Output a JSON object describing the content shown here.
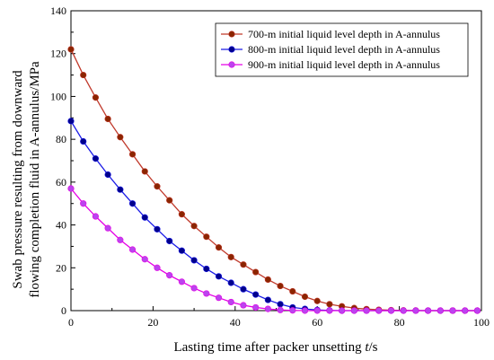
{
  "chart_data": {
    "type": "line",
    "title": "",
    "xlabel": "Lasting time after packer unsetting t/s",
    "xlabel_parts": [
      "Lasting time after packer unsetting ",
      "t",
      "/s"
    ],
    "ylabel_lines": [
      "Swab pressure resulting from downward",
      "flowing completion fluid in A-annulus/MPa"
    ],
    "xlim": [
      0,
      100
    ],
    "ylim": [
      0,
      140
    ],
    "x_ticks": [
      0,
      20,
      40,
      60,
      80,
      100
    ],
    "y_ticks": [
      0,
      20,
      40,
      60,
      80,
      100,
      120,
      140
    ],
    "grid": false,
    "legend_position": "top-right",
    "x": [
      0,
      3,
      6,
      9,
      12,
      15,
      18,
      21,
      24,
      27,
      30,
      33,
      36,
      39,
      42,
      45,
      48,
      51,
      54,
      57,
      60,
      63,
      66,
      69,
      72,
      75,
      78,
      81,
      84,
      87,
      90,
      93,
      96,
      99
    ],
    "series": [
      {
        "name": "700-m initial liquid level depth in A-annulus",
        "color": "#c0392b",
        "marker_color": "#8b2500",
        "values": [
          122,
          110,
          99.5,
          89.5,
          81,
          73,
          65,
          58,
          51.5,
          45,
          39.5,
          34.5,
          29.5,
          25,
          21.5,
          18,
          14.5,
          11.5,
          9,
          6.5,
          4.5,
          3,
          2,
          1.2,
          0.7,
          0.4,
          0.2,
          0.1,
          0.05,
          0,
          0,
          0,
          0,
          0
        ]
      },
      {
        "name": "800-m initial liquid level depth in A-annulus",
        "color": "#1a1ae6",
        "marker_color": "#00008b",
        "values": [
          88.5,
          79,
          71,
          63.5,
          56.5,
          50,
          43.5,
          38,
          32.5,
          28,
          23.5,
          19.5,
          16,
          13,
          10,
          7.5,
          5,
          3,
          1.5,
          0.8,
          0.3,
          0.1,
          0,
          0,
          0,
          0,
          0,
          0,
          0,
          0,
          0,
          0,
          0,
          0
        ]
      },
      {
        "name": "900-m initial liquid level depth in A-annulus",
        "color": "#e600e6",
        "marker_color": "#bb44ee",
        "values": [
          57,
          50,
          44,
          38.5,
          33,
          28.5,
          24,
          20,
          16.5,
          13.5,
          10.5,
          8,
          6,
          4,
          2.5,
          1.5,
          0.8,
          0.3,
          0.1,
          0,
          0,
          0,
          0,
          0,
          0,
          0,
          0,
          0,
          0,
          0,
          0,
          0,
          0,
          0
        ]
      }
    ]
  }
}
